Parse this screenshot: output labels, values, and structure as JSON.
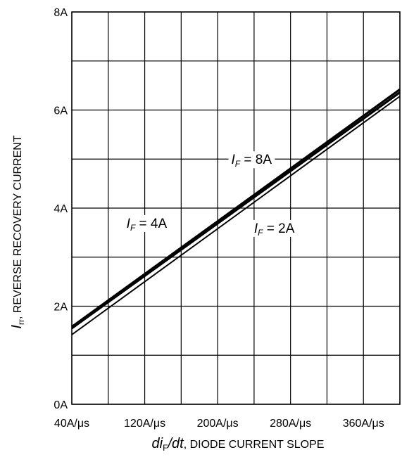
{
  "chart_data": {
    "type": "line",
    "x": [
      40,
      400
    ],
    "xlim": [
      40,
      400
    ],
    "ylim": [
      0,
      8
    ],
    "grid": true,
    "series": [
      {
        "name": "IF = 8A",
        "x": [
          40,
          400
        ],
        "y": [
          1.58,
          6.42
        ]
      },
      {
        "name": "IF = 4A",
        "x": [
          40,
          400
        ],
        "y": [
          1.55,
          6.36
        ]
      },
      {
        "name": "IF = 2A",
        "x": [
          40,
          400
        ],
        "y": [
          1.42,
          6.28
        ]
      }
    ],
    "x_ticks": [
      {
        "value": 40,
        "label": "40A/μs"
      },
      {
        "value": 120,
        "label": "120A/μs"
      },
      {
        "value": 200,
        "label": "200A/μs"
      },
      {
        "value": 280,
        "label": "280A/μs"
      },
      {
        "value": 360,
        "label": "360A/μs"
      }
    ],
    "y_ticks": [
      {
        "value": 0,
        "label": "0A"
      },
      {
        "value": 2,
        "label": "2A"
      },
      {
        "value": 4,
        "label": "4A"
      },
      {
        "value": 6,
        "label": "6A"
      },
      {
        "value": 8,
        "label": "8A"
      }
    ],
    "ylabel": {
      "symbol": "I",
      "subscript": "rr",
      "text": ", REVERSE RECOVERY CURRENT"
    },
    "xlabel": {
      "symbol_d": "di",
      "subscript": "F",
      "symbol_rest": "/dt",
      "text": ", DIODE CURRENT SLOPE"
    },
    "annotations": [
      {
        "series": "IF = 8A",
        "symbol": "I",
        "subscript": "F",
        "text": " = 8A",
        "x": 215,
        "y": 4.9
      },
      {
        "series": "IF = 4A",
        "symbol": "I",
        "subscript": "F",
        "text": " = 4A",
        "x": 100,
        "y": 3.6
      },
      {
        "series": "IF = 2A",
        "symbol": "I",
        "subscript": "F",
        "text": " = 2A",
        "x": 240,
        "y": 3.5
      }
    ]
  }
}
